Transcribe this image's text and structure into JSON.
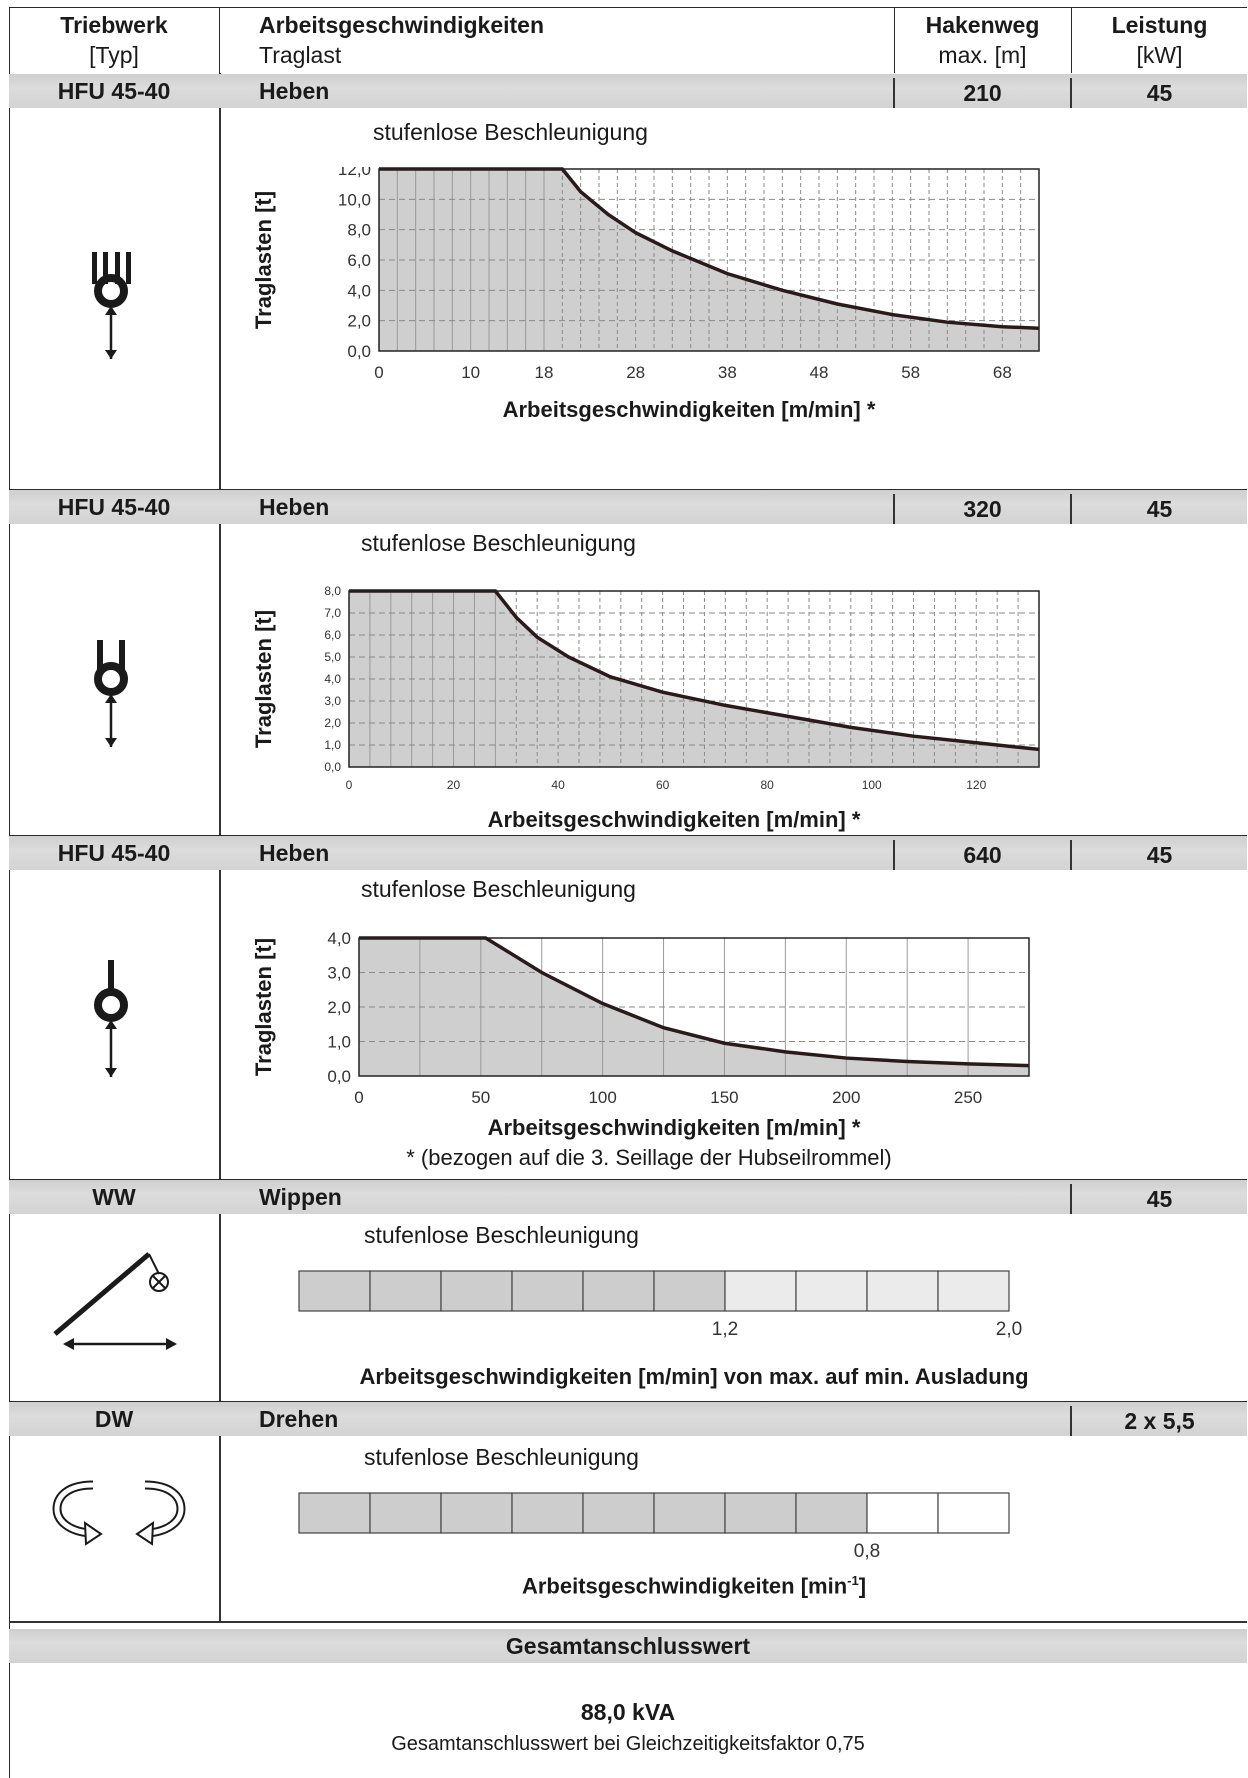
{
  "header": {
    "col1_title": "Triebwerk",
    "col1_sub": "[Typ]",
    "col2_title": "Arbeitsgeschwindigkeiten",
    "col2_sub": "Traglast",
    "col3_title": "Hakenweg",
    "col3_sub": "max. [m]",
    "col4_title": "Leistung",
    "col4_sub": "[kW]"
  },
  "sections": [
    {
      "type": "HFU 45-40",
      "motion": "Heben",
      "hakenweg": "210",
      "leistung": "45",
      "subtitle": "stufenlose Beschleunigung"
    },
    {
      "type": "HFU 45-40",
      "motion": "Heben",
      "hakenweg": "320",
      "leistung": "45",
      "subtitle": "stufenlose Beschleunigung"
    },
    {
      "type": "HFU 45-40",
      "motion": "Heben",
      "hakenweg": "640",
      "leistung": "45",
      "subtitle": "stufenlose Beschleunigung",
      "footnote": "* (bezogen auf die 3. Seillage der Hubseilrommel)"
    },
    {
      "type": "WW",
      "motion": "Wippen",
      "leistung": "45",
      "subtitle": "stufenlose Beschleunigung",
      "axis_label": "Arbeitsgeschwindigkeiten [m/min] von max. auf min. Ausladung"
    },
    {
      "type": "DW",
      "motion": "Drehen",
      "leistung": "2 x 5,5",
      "subtitle": "stufenlose Beschleunigung",
      "axis_label_main": "Arbeitsgeschwindigkeiten [min",
      "axis_label_sup": "-1",
      "axis_label_end": "]"
    }
  ],
  "icons": [
    "hook-four-fall-icon",
    "hook-two-fall-icon",
    "hook-single-fall-icon",
    "luffing-jib-icon",
    "slewing-arrows-icon"
  ],
  "total": {
    "title": "Gesamtanschlusswert",
    "value": "88,0 kVA",
    "note": "Gesamtanschlusswert bei Gleichzeitigkeitsfaktor 0,75"
  },
  "chart_data": [
    {
      "type": "area",
      "xlabel": "Arbeitsgeschwindigkeiten [m/min] *",
      "ylabel": "Traglasten [t]",
      "xlim": [
        0,
        72
      ],
      "ylim": [
        0,
        12
      ],
      "xticks": [
        "0",
        "10",
        "18",
        "28",
        "38",
        "48",
        "58",
        "68"
      ],
      "xtick_values": [
        0,
        10,
        18,
        28,
        38,
        48,
        58,
        68
      ],
      "yticks": [
        "0,0",
        "2,0",
        "4,0",
        "6,0",
        "8,0",
        "10,0",
        "12,0"
      ],
      "ytick_values": [
        0,
        2,
        4,
        6,
        8,
        10,
        12
      ],
      "vgrid_step": 2,
      "vgrid_dash_from": 20,
      "x": [
        0,
        20,
        22,
        25,
        28,
        32,
        38,
        44,
        50,
        56,
        62,
        68,
        72
      ],
      "y": [
        12,
        12,
        10.5,
        9,
        7.8,
        6.6,
        5.1,
        4.0,
        3.1,
        2.4,
        1.9,
        1.6,
        1.5
      ]
    },
    {
      "type": "area",
      "xlabel": "Arbeitsgeschwindigkeiten [m/min] *",
      "ylabel": "Traglasten [t]",
      "xlim": [
        0,
        132
      ],
      "ylim": [
        0,
        8
      ],
      "xticks": [
        "0",
        "20",
        "40",
        "60",
        "80",
        "100",
        "120"
      ],
      "xtick_values": [
        0,
        20,
        40,
        60,
        80,
        100,
        120
      ],
      "yticks": [
        "0,0",
        "1,0",
        "2,0",
        "3,0",
        "4,0",
        "5,0",
        "6,0",
        "7,0",
        "8,0"
      ],
      "ytick_values": [
        0,
        1,
        2,
        3,
        4,
        5,
        6,
        7,
        8
      ],
      "vgrid_step": 4,
      "vgrid_dash_from": 32,
      "x": [
        0,
        28,
        32,
        36,
        42,
        50,
        60,
        72,
        84,
        96,
        108,
        120,
        132
      ],
      "y": [
        8,
        8,
        6.8,
        5.9,
        5.0,
        4.1,
        3.4,
        2.8,
        2.3,
        1.8,
        1.4,
        1.1,
        0.8
      ]
    },
    {
      "type": "area",
      "xlabel": "Arbeitsgeschwindigkeiten [m/min] *",
      "ylabel": "Traglasten [t]",
      "xlim": [
        0,
        275
      ],
      "ylim": [
        0,
        4
      ],
      "xticks": [
        "0",
        "50",
        "100",
        "150",
        "200",
        "250"
      ],
      "xtick_values": [
        0,
        50,
        100,
        150,
        200,
        250
      ],
      "yticks": [
        "0,0",
        "1,0",
        "2,0",
        "3,0",
        "4,0"
      ],
      "ytick_values": [
        0,
        1,
        2,
        3,
        4
      ],
      "vgrid_step": 25,
      "vgrid_dash_from": 1000,
      "x": [
        0,
        52,
        75,
        100,
        125,
        150,
        175,
        200,
        225,
        250,
        275
      ],
      "y": [
        4,
        4,
        3.0,
        2.1,
        1.4,
        0.95,
        0.7,
        0.52,
        0.42,
        0.35,
        0.3
      ]
    },
    {
      "type": "bar",
      "cells": 10,
      "filled_cells": 6,
      "light_cells": 4,
      "tick_labels": [
        "1,2",
        "2,0"
      ],
      "tick_cells": [
        6,
        10
      ]
    },
    {
      "type": "bar",
      "cells": 10,
      "filled_cells": 8,
      "light_cells": 0,
      "tick_labels": [
        "0,8"
      ],
      "tick_cells": [
        8
      ]
    }
  ]
}
